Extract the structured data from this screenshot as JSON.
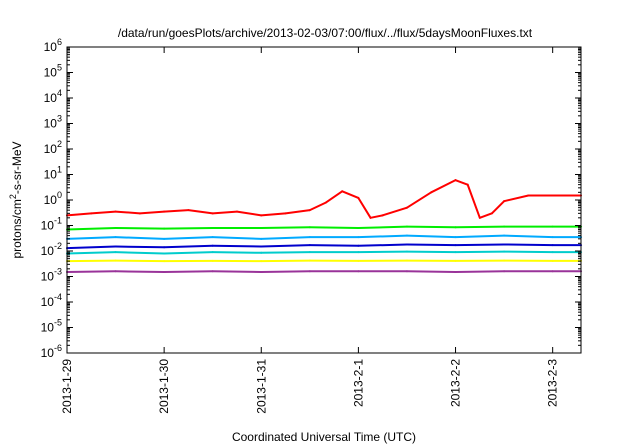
{
  "chart_data": {
    "type": "line",
    "title": "/data/run/goesPlots/archive/2013-02-03/07:00/flux/../flux/5daysMoonFluxes.txt",
    "xlabel": "Coordinated Universal Time (UTC)",
    "ylabel": {
      "base": "protons/cm",
      "sup": "2",
      "rest": "-s-sr-MeV"
    },
    "yscale": "log",
    "ylim": [
      1e-06,
      1000000.0
    ],
    "y_ticks": [
      {
        "exp": "-6"
      },
      {
        "exp": "-5"
      },
      {
        "exp": "-4"
      },
      {
        "exp": "-3"
      },
      {
        "exp": "-2"
      },
      {
        "exp": "-1"
      },
      {
        "exp": "0"
      },
      {
        "exp": "1"
      },
      {
        "exp": "2"
      },
      {
        "exp": "3"
      },
      {
        "exp": "4"
      },
      {
        "exp": "5"
      },
      {
        "exp": "6"
      }
    ],
    "x_ticks": [
      "2013-1-29",
      "2013-1-30",
      "2013-1-31",
      "2013-2-1",
      "2013-2-2",
      "2013-2-3"
    ],
    "xlim": [
      "2013-01-29T00:00",
      "2013-02-03T07:00"
    ],
    "grid": false,
    "legend": "none",
    "series": [
      {
        "color": "#ff0000",
        "x": [
          "2013-01-29T00:00",
          "2013-01-29T06:00",
          "2013-01-29T12:00",
          "2013-01-29T18:00",
          "2013-01-30T00:00",
          "2013-01-30T06:00",
          "2013-01-30T12:00",
          "2013-01-30T18:00",
          "2013-01-31T00:00",
          "2013-01-31T06:00",
          "2013-01-31T12:00",
          "2013-01-31T16:00",
          "2013-01-31T20:00",
          "2013-02-01T00:00",
          "2013-02-01T03:00",
          "2013-02-01T06:00",
          "2013-02-01T12:00",
          "2013-02-01T18:00",
          "2013-02-02T00:00",
          "2013-02-02T03:00",
          "2013-02-02T06:00",
          "2013-02-02T09:00",
          "2013-02-02T12:00",
          "2013-02-02T18:00",
          "2013-02-03T00:00",
          "2013-02-03T07:00"
        ],
        "y": [
          0.25,
          0.3,
          0.35,
          0.3,
          0.35,
          0.4,
          0.3,
          0.35,
          0.25,
          0.3,
          0.4,
          0.8,
          2.2,
          1.2,
          0.2,
          0.25,
          0.5,
          2.0,
          6.0,
          4.0,
          0.2,
          0.3,
          0.9,
          1.5,
          1.5,
          1.5
        ]
      },
      {
        "color": "#00ee00",
        "x": [
          "2013-01-29T00:00",
          "2013-01-29T12:00",
          "2013-01-30T00:00",
          "2013-01-30T12:00",
          "2013-01-31T00:00",
          "2013-01-31T12:00",
          "2013-02-01T00:00",
          "2013-02-01T12:00",
          "2013-02-02T00:00",
          "2013-02-02T12:00",
          "2013-02-03T00:00",
          "2013-02-03T07:00"
        ],
        "y": [
          0.07,
          0.08,
          0.075,
          0.08,
          0.08,
          0.085,
          0.08,
          0.09,
          0.085,
          0.09,
          0.09,
          0.09
        ]
      },
      {
        "color": "#00aaff",
        "x": [
          "2013-01-29T00:00",
          "2013-01-29T12:00",
          "2013-01-30T00:00",
          "2013-01-30T12:00",
          "2013-01-31T00:00",
          "2013-01-31T12:00",
          "2013-02-01T00:00",
          "2013-02-01T12:00",
          "2013-02-02T00:00",
          "2013-02-02T12:00",
          "2013-02-03T00:00",
          "2013-02-03T07:00"
        ],
        "y": [
          0.03,
          0.035,
          0.03,
          0.035,
          0.03,
          0.035,
          0.035,
          0.04,
          0.035,
          0.04,
          0.035,
          0.035
        ]
      },
      {
        "color": "#0000cc",
        "x": [
          "2013-01-29T00:00",
          "2013-01-29T12:00",
          "2013-01-30T00:00",
          "2013-01-30T12:00",
          "2013-01-31T00:00",
          "2013-01-31T12:00",
          "2013-02-01T00:00",
          "2013-02-01T12:00",
          "2013-02-02T00:00",
          "2013-02-02T12:00",
          "2013-02-03T00:00",
          "2013-02-03T07:00"
        ],
        "y": [
          0.013,
          0.015,
          0.014,
          0.016,
          0.015,
          0.017,
          0.016,
          0.018,
          0.017,
          0.018,
          0.017,
          0.017
        ]
      },
      {
        "color": "#00cccc",
        "x": [
          "2013-01-29T00:00",
          "2013-01-29T12:00",
          "2013-01-30T00:00",
          "2013-01-30T12:00",
          "2013-01-31T00:00",
          "2013-01-31T12:00",
          "2013-02-01T00:00",
          "2013-02-01T12:00",
          "2013-02-02T00:00",
          "2013-02-02T12:00",
          "2013-02-03T00:00",
          "2013-02-03T07:00"
        ],
        "y": [
          0.008,
          0.009,
          0.008,
          0.009,
          0.0085,
          0.009,
          0.009,
          0.0095,
          0.009,
          0.0095,
          0.009,
          0.009
        ]
      },
      {
        "color": "#ffff00",
        "x": [
          "2013-01-29T00:00",
          "2013-01-29T12:00",
          "2013-01-30T00:00",
          "2013-01-30T12:00",
          "2013-01-31T00:00",
          "2013-01-31T12:00",
          "2013-02-01T00:00",
          "2013-02-01T12:00",
          "2013-02-02T00:00",
          "2013-02-02T12:00",
          "2013-02-03T00:00",
          "2013-02-03T07:00"
        ],
        "y": [
          0.004,
          0.0042,
          0.004,
          0.0041,
          0.004,
          0.0042,
          0.0041,
          0.0042,
          0.0041,
          0.0042,
          0.0041,
          0.0041
        ]
      },
      {
        "color": "#993399",
        "x": [
          "2013-01-29T00:00",
          "2013-01-29T12:00",
          "2013-01-30T00:00",
          "2013-01-30T12:00",
          "2013-01-31T00:00",
          "2013-01-31T12:00",
          "2013-02-01T00:00",
          "2013-02-01T12:00",
          "2013-02-02T00:00",
          "2013-02-02T12:00",
          "2013-02-03T00:00",
          "2013-02-03T07:00"
        ],
        "y": [
          0.0015,
          0.0016,
          0.0015,
          0.0016,
          0.0015,
          0.0016,
          0.0016,
          0.0016,
          0.0015,
          0.0016,
          0.0016,
          0.0016
        ]
      }
    ]
  }
}
